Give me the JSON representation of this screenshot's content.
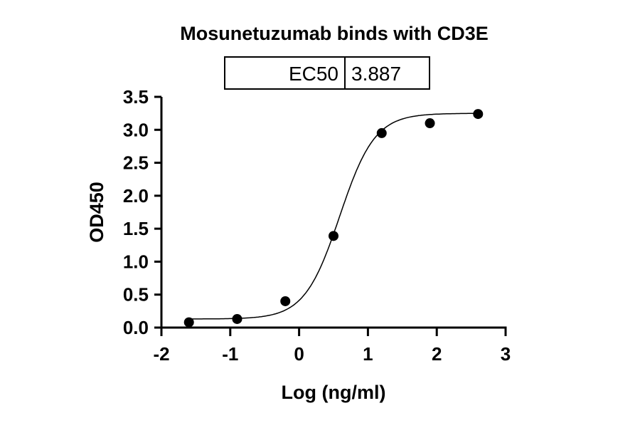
{
  "chart_data": {
    "type": "scatter",
    "title": "Mosunetuzumab binds with CD3E",
    "xlabel": "Log (ng/ml)",
    "ylabel": "OD450",
    "xlim": [
      -2,
      3
    ],
    "ylim": [
      0,
      3.5
    ],
    "x_ticks": [
      "-2",
      "-1",
      "0",
      "1",
      "2",
      "3"
    ],
    "y_ticks": [
      "0.0",
      "0.5",
      "1.0",
      "1.5",
      "2.0",
      "2.5",
      "3.0",
      "3.5"
    ],
    "grid": false,
    "points": {
      "x": [
        -1.6,
        -0.9,
        -0.2,
        0.5,
        1.2,
        1.9,
        2.6
      ],
      "y": [
        0.08,
        0.13,
        0.4,
        1.39,
        2.95,
        3.1,
        3.24
      ]
    },
    "fit": {
      "model": "4PL",
      "bottom": 0.13,
      "top": 3.25,
      "logEC50": 0.59,
      "hill": 1.7
    },
    "ec50_table": {
      "label": "EC50",
      "value": "3.887"
    }
  }
}
